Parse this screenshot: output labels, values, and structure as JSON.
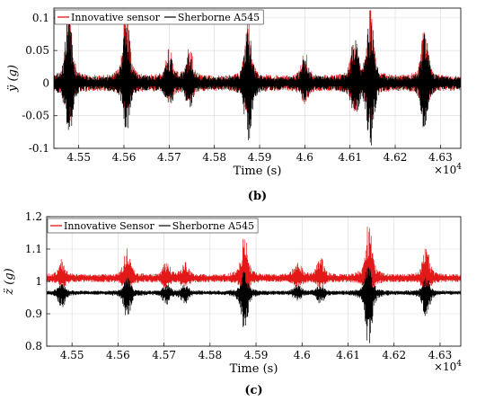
{
  "charts": [
    {
      "id": "b",
      "caption": "(b)",
      "exponent_label": "×10",
      "exponent_power": "4",
      "chart_data": {
        "type": "line",
        "xlabel": "Time (s)",
        "ylabel": "ÿ (g)",
        "xlim": [
          45445,
          46345
        ],
        "ylim": [
          -0.1,
          0.115
        ],
        "x_ticks": [
          45500,
          45600,
          45700,
          45800,
          45900,
          46000,
          46100,
          46200,
          46300
        ],
        "x_tick_labels": [
          "4.55",
          "4.56",
          "4.57",
          "4.58",
          "4.59",
          "4.6",
          "4.61",
          "4.62",
          "4.63"
        ],
        "y_ticks": [
          -0.1,
          -0.05,
          0,
          0.05,
          0.1
        ],
        "y_tick_labels": [
          "-0.1",
          "-0.05",
          "0",
          "0.05",
          "0.1"
        ],
        "grid": true,
        "legend_position": "top-left",
        "series": [
          {
            "name": "Innovative sensor",
            "color": "#e00000",
            "baseline": 0.0,
            "noise": 0.012,
            "events": [
              [
                45478,
                0.1,
                0.05
              ],
              [
                45605,
                0.095,
                0.04
              ],
              [
                45700,
                0.04,
                0.02
              ],
              [
                45745,
                0.04,
                0.02
              ],
              [
                45875,
                0.08,
                0.04
              ],
              [
                46000,
                0.035,
                0.02
              ],
              [
                46110,
                0.06,
                0.03
              ],
              [
                46145,
                0.1,
                0.05
              ],
              [
                46265,
                0.075,
                0.04
              ]
            ]
          },
          {
            "name": "Sherborne A545",
            "color": "#000000",
            "baseline": 0.0,
            "noise": 0.01,
            "events": [
              [
                45478,
                0.095,
                0.08
              ],
              [
                45605,
                0.09,
                0.07
              ],
              [
                45700,
                0.035,
                0.03
              ],
              [
                45745,
                0.035,
                0.03
              ],
              [
                45875,
                0.075,
                0.09
              ],
              [
                46000,
                0.03,
                0.02
              ],
              [
                46110,
                0.055,
                0.05
              ],
              [
                46145,
                0.095,
                0.09
              ],
              [
                46265,
                0.07,
                0.06
              ]
            ]
          }
        ]
      }
    },
    {
      "id": "c",
      "caption": "(c)",
      "exponent_label": "×10",
      "exponent_power": "4",
      "chart_data": {
        "type": "line",
        "xlabel": "Time (s)",
        "ylabel": "z̈ (g)",
        "xlim": [
          45445,
          46345
        ],
        "ylim": [
          0.8,
          1.2
        ],
        "x_ticks": [
          45500,
          45600,
          45700,
          45800,
          45900,
          46000,
          46100,
          46200,
          46300
        ],
        "x_tick_labels": [
          "4.55",
          "4.56",
          "4.57",
          "4.58",
          "4.59",
          "4.6",
          "4.61",
          "4.62",
          "4.63"
        ],
        "y_ticks": [
          0.8,
          0.9,
          1.0,
          1.1,
          1.2
        ],
        "y_tick_labels": [
          "0.8",
          "0.9",
          "1",
          "1.1",
          "1.2"
        ],
        "grid": true,
        "legend_position": "top-left",
        "series": [
          {
            "name": "Innovative Sensor",
            "color": "#e00000",
            "baseline": 1.01,
            "noise": 0.012,
            "events": [
              [
                45478,
                0.05,
                0.02
              ],
              [
                45620,
                0.08,
                0.04
              ],
              [
                45705,
                0.04,
                0.02
              ],
              [
                45745,
                0.04,
                0.02
              ],
              [
                45875,
                0.12,
                0.05
              ],
              [
                45990,
                0.05,
                0.02
              ],
              [
                46040,
                0.05,
                0.02
              ],
              [
                46145,
                0.15,
                0.07
              ],
              [
                46270,
                0.08,
                0.04
              ]
            ]
          },
          {
            "name": "Sherborne A545",
            "color": "#000000",
            "baseline": 0.965,
            "noise": 0.006,
            "events": [
              [
                45478,
                0.025,
                0.04
              ],
              [
                45620,
                0.04,
                0.07
              ],
              [
                45705,
                0.02,
                0.03
              ],
              [
                45745,
                0.02,
                0.03
              ],
              [
                45875,
                0.06,
                0.11
              ],
              [
                45990,
                0.02,
                0.02
              ],
              [
                46040,
                0.02,
                0.03
              ],
              [
                46145,
                0.08,
                0.15
              ],
              [
                46270,
                0.04,
                0.07
              ]
            ]
          }
        ]
      }
    }
  ]
}
